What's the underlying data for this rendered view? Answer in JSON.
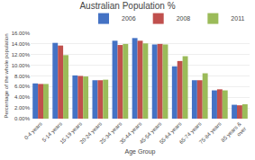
{
  "chart_data": {
    "type": "bar",
    "title": "Australian Population %",
    "xlabel": "Age Group",
    "ylabel": "Percentage of the whole population",
    "categories": [
      "0-4 years",
      "5-14 years",
      "15-19 years",
      "20-24 years",
      "25-34 years",
      "35-44 years",
      "45-54 years",
      "55-64 years",
      "65-74 years",
      "75-84 years",
      "85 years &\nover"
    ],
    "series": [
      {
        "name": "2006",
        "color": "#4472C4",
        "values": [
          6.6,
          14.2,
          8.1,
          7.2,
          14.6,
          15.1,
          13.9,
          9.8,
          7.2,
          5.3,
          2.6
        ]
      },
      {
        "name": "2008",
        "color": "#C0504D",
        "values": [
          6.5,
          13.7,
          8.0,
          7.2,
          13.8,
          14.6,
          14.0,
          10.8,
          7.2,
          5.5,
          2.5
        ]
      },
      {
        "name": "2011",
        "color": "#9BBB59",
        "values": [
          6.5,
          11.9,
          7.9,
          7.3,
          14.0,
          14.1,
          13.9,
          11.7,
          8.5,
          5.3,
          2.7
        ]
      }
    ],
    "ylim": [
      0,
      16.0
    ],
    "yticks": [
      {
        "value": 0,
        "label": "0.00%"
      },
      {
        "value": 2.0,
        "label": "2.00%"
      },
      {
        "value": 4.0,
        "label": "4.00%"
      },
      {
        "value": 6.0,
        "label": "6.00%"
      },
      {
        "value": 8.0,
        "label": "8.00%"
      },
      {
        "value": 10.0,
        "label": "10.00%"
      },
      {
        "value": 12.0,
        "label": "12.00%"
      },
      {
        "value": 14.0,
        "label": "14.00%"
      },
      {
        "value": 16.0,
        "label": "16.00%"
      }
    ],
    "legend": "upper right",
    "grid": true
  }
}
